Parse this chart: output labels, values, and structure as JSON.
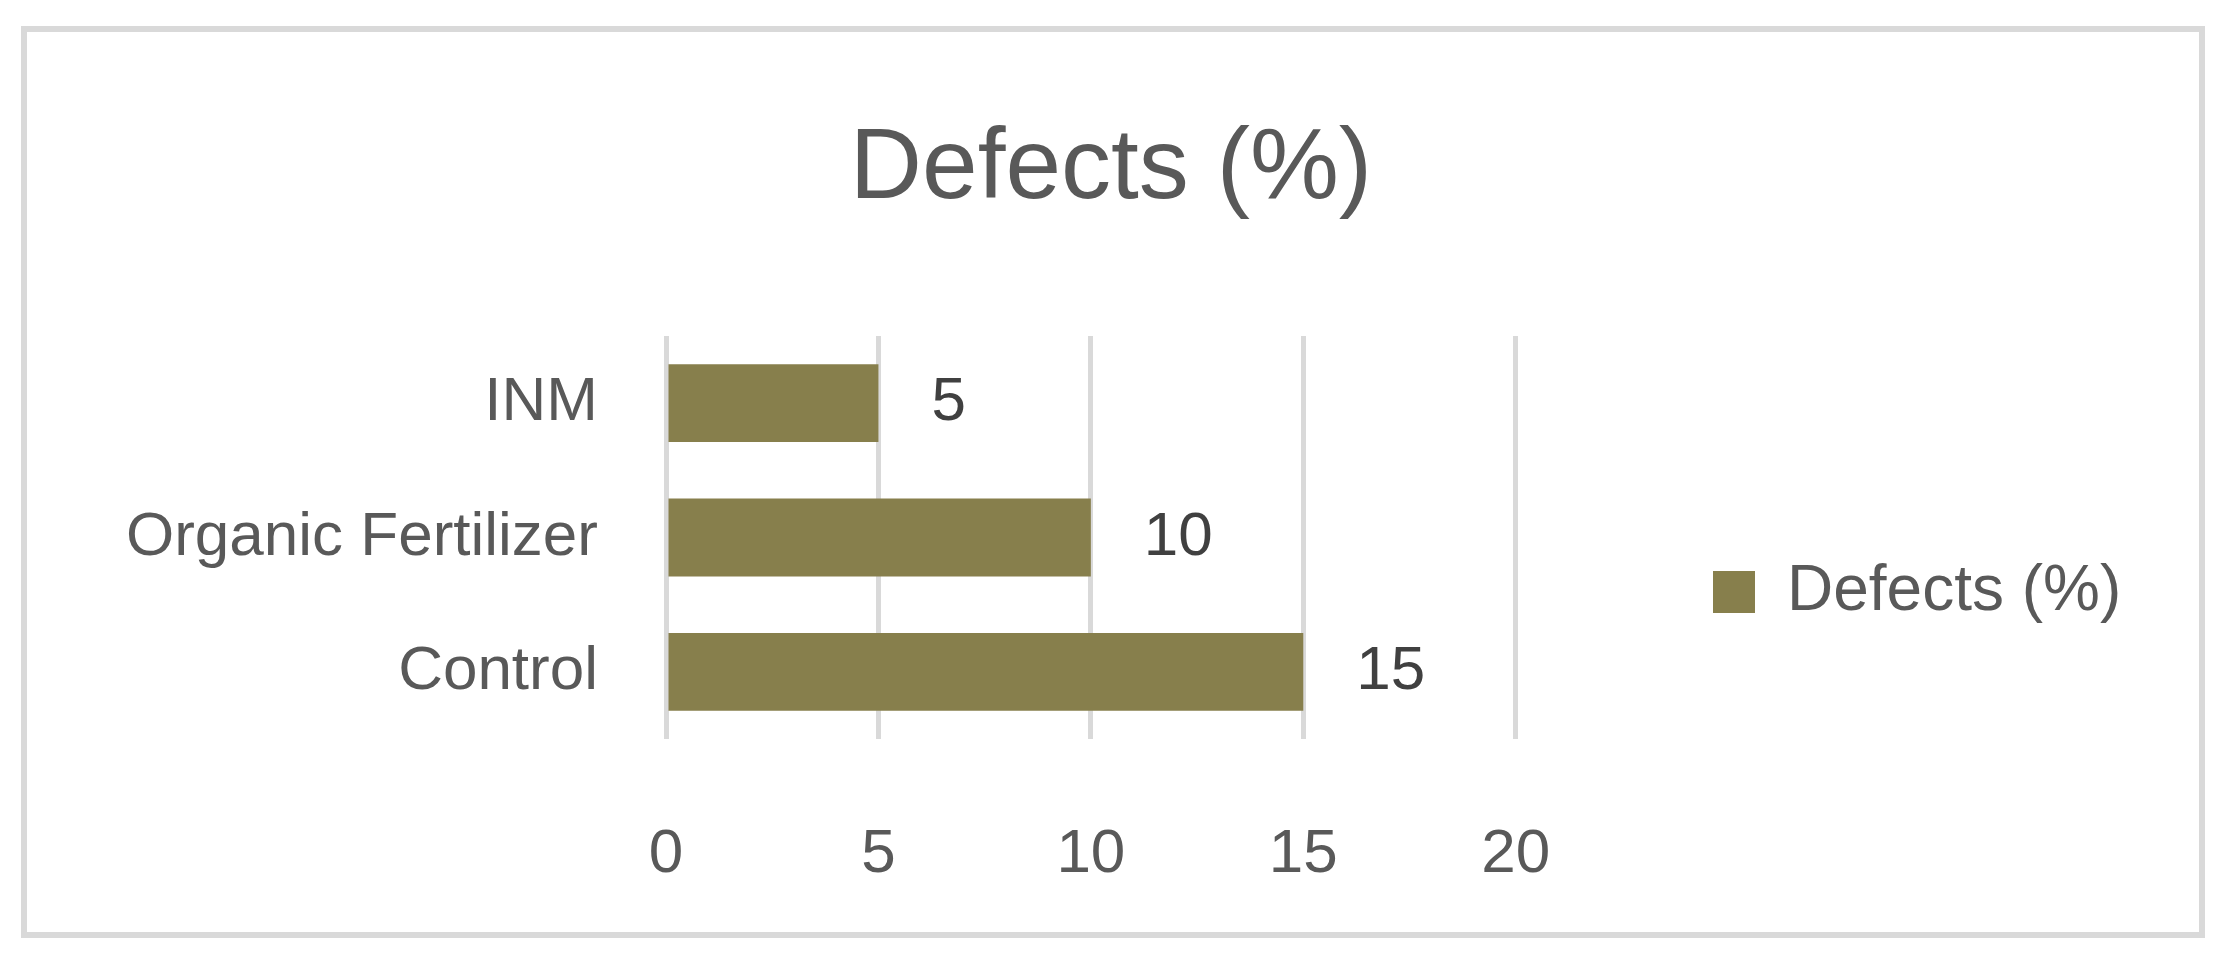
{
  "chart_data": {
    "type": "bar",
    "title": "Defects (%)",
    "orientation": "horizontal",
    "categories": [
      "INM",
      "Organic Fertilizer",
      "Control"
    ],
    "series": [
      {
        "name": "Defects (%)",
        "color": "#877f4c",
        "values": [
          5,
          10,
          15
        ]
      }
    ],
    "xlim": [
      0,
      20
    ],
    "xticks": [
      0,
      5,
      10,
      15,
      20
    ],
    "grid": "x",
    "legend": "right",
    "data_labels": true
  }
}
